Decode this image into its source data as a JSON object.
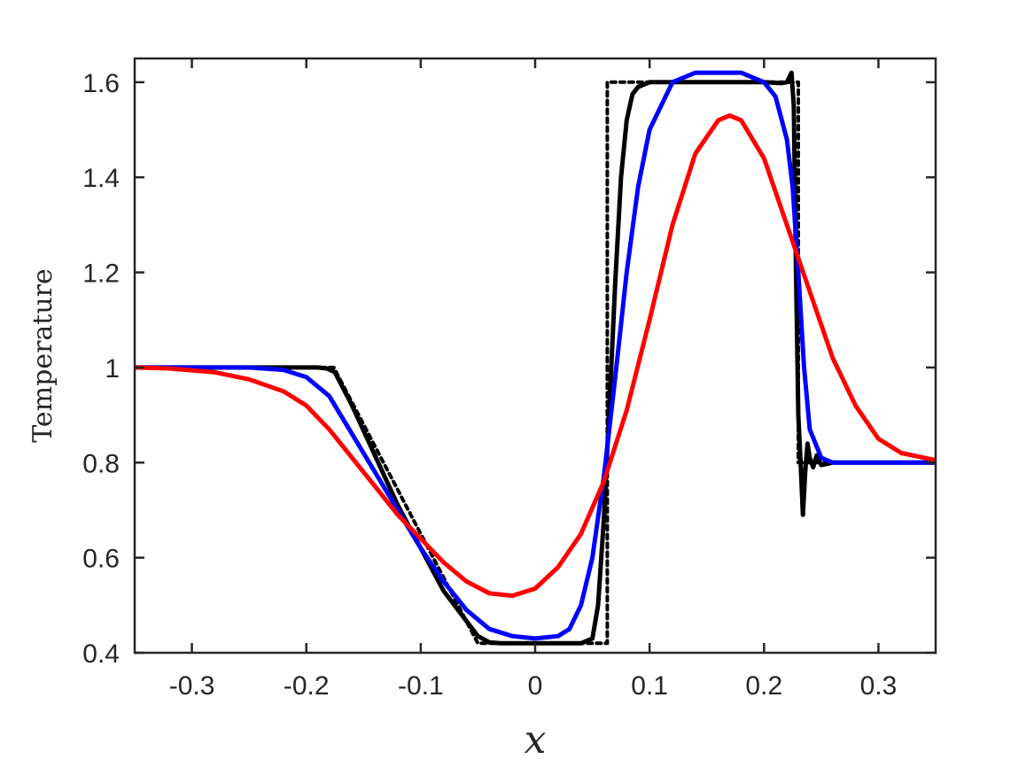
{
  "chart_data": {
    "type": "line",
    "xlabel": "x",
    "ylabel": "Temperature",
    "xlim": [
      -0.35,
      0.35
    ],
    "ylim": [
      0.4,
      1.65
    ],
    "xticks": [
      -0.3,
      -0.2,
      -0.1,
      0,
      0.1,
      0.2,
      0.3
    ],
    "xtick_labels": [
      "-0.3",
      "-0.2",
      "-0.1",
      "0",
      "0.1",
      "0.2",
      "0.3"
    ],
    "yticks": [
      0.4,
      0.6,
      0.8,
      1.0,
      1.2,
      1.4,
      1.6
    ],
    "ytick_labels": [
      "0.4",
      "0.6",
      "0.8",
      "1",
      "1.2",
      "1.4",
      "1.6"
    ],
    "grid": false,
    "series": [
      {
        "color": "#000000",
        "style": "dotted",
        "x": [
          -0.35,
          -0.176,
          -0.05,
          0.063,
          0.063,
          0.23,
          0.23,
          0.35
        ],
        "y": [
          1.0,
          1.0,
          0.42,
          0.42,
          1.6,
          1.6,
          0.8,
          0.8
        ]
      },
      {
        "color": "#000000",
        "style": "solid",
        "x": [
          -0.35,
          -0.19,
          -0.182,
          -0.175,
          -0.16,
          -0.12,
          -0.08,
          -0.05,
          -0.04,
          -0.03,
          0.0,
          0.04,
          0.05,
          0.055,
          0.06,
          0.065,
          0.07,
          0.075,
          0.08,
          0.085,
          0.09,
          0.1,
          0.12,
          0.15,
          0.18,
          0.2,
          0.215,
          0.22,
          0.224,
          0.226,
          0.228,
          0.23,
          0.232,
          0.234,
          0.236,
          0.238,
          0.24,
          0.243,
          0.246,
          0.25,
          0.26,
          0.3,
          0.35
        ],
        "y": [
          1.0,
          1.0,
          0.998,
          0.99,
          0.92,
          0.71,
          0.53,
          0.435,
          0.422,
          0.42,
          0.42,
          0.42,
          0.43,
          0.5,
          0.68,
          0.92,
          1.18,
          1.4,
          1.52,
          1.575,
          1.59,
          1.6,
          1.6,
          1.6,
          1.6,
          1.6,
          1.598,
          1.6,
          1.62,
          1.55,
          1.2,
          0.9,
          0.8,
          0.69,
          0.78,
          0.84,
          0.81,
          0.79,
          0.815,
          0.795,
          0.8,
          0.8,
          0.8
        ]
      },
      {
        "color": "#0000ff",
        "style": "solid",
        "x": [
          -0.35,
          -0.3,
          -0.25,
          -0.22,
          -0.2,
          -0.18,
          -0.16,
          -0.14,
          -0.12,
          -0.1,
          -0.08,
          -0.06,
          -0.04,
          -0.02,
          0.0,
          0.02,
          0.03,
          0.04,
          0.05,
          0.06,
          0.07,
          0.08,
          0.09,
          0.1,
          0.12,
          0.14,
          0.16,
          0.18,
          0.2,
          0.21,
          0.22,
          0.225,
          0.23,
          0.235,
          0.24,
          0.25,
          0.26,
          0.3,
          0.35
        ],
        "y": [
          1.0,
          1.0,
          1.0,
          0.995,
          0.98,
          0.94,
          0.86,
          0.78,
          0.7,
          0.62,
          0.55,
          0.49,
          0.45,
          0.435,
          0.43,
          0.435,
          0.45,
          0.5,
          0.6,
          0.77,
          0.98,
          1.2,
          1.38,
          1.5,
          1.6,
          1.62,
          1.62,
          1.62,
          1.6,
          1.57,
          1.48,
          1.38,
          1.2,
          1.0,
          0.87,
          0.81,
          0.8,
          0.8,
          0.8
        ]
      },
      {
        "color": "#ff0000",
        "style": "solid",
        "x": [
          -0.35,
          -0.32,
          -0.28,
          -0.25,
          -0.22,
          -0.2,
          -0.18,
          -0.16,
          -0.14,
          -0.12,
          -0.1,
          -0.08,
          -0.06,
          -0.04,
          -0.02,
          0.0,
          0.02,
          0.04,
          0.06,
          0.08,
          0.1,
          0.12,
          0.14,
          0.16,
          0.17,
          0.18,
          0.2,
          0.22,
          0.24,
          0.26,
          0.28,
          0.3,
          0.32,
          0.35
        ],
        "y": [
          1.0,
          0.998,
          0.99,
          0.975,
          0.95,
          0.92,
          0.87,
          0.81,
          0.75,
          0.69,
          0.64,
          0.59,
          0.55,
          0.525,
          0.52,
          0.535,
          0.58,
          0.65,
          0.76,
          0.91,
          1.1,
          1.3,
          1.45,
          1.52,
          1.53,
          1.52,
          1.44,
          1.3,
          1.16,
          1.02,
          0.92,
          0.85,
          0.82,
          0.805
        ]
      }
    ]
  }
}
